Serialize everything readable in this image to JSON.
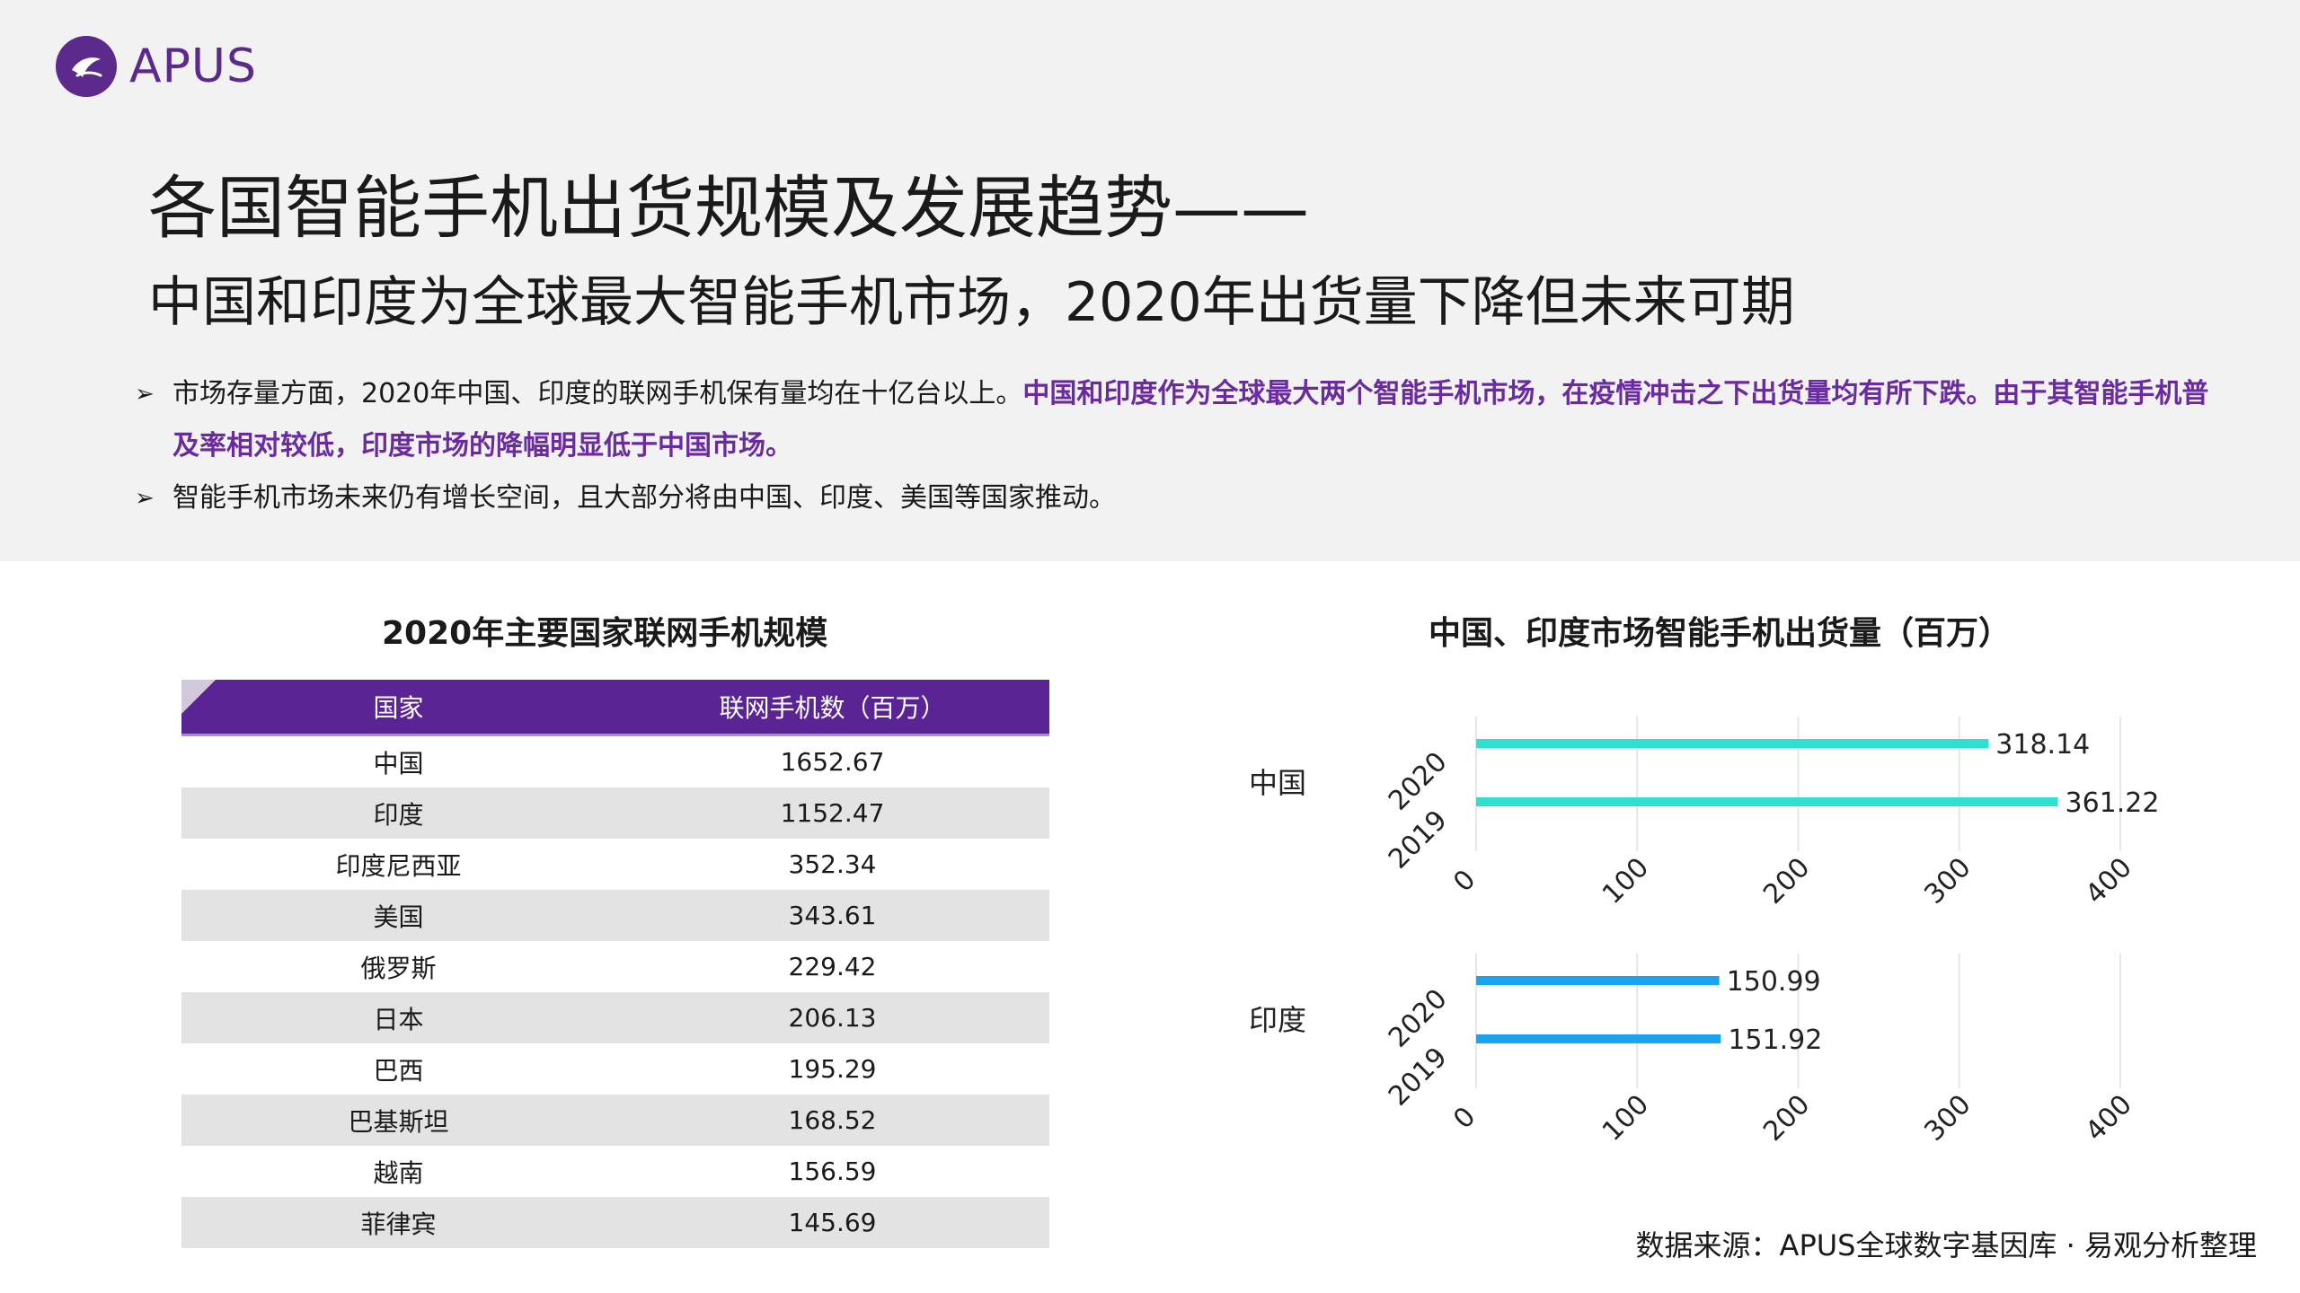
{
  "brand": {
    "name": "APUS",
    "color": "#5b2a8c"
  },
  "title": "各国智能手机出货规模及发展趋势——",
  "subtitle": "中国和印度为全球最大智能手机市场，2020年出货量下降但未来可期",
  "bullets": [
    {
      "plain": "市场存量方面，2020年中国、印度的联网手机保有量均在十亿台以上。",
      "highlight": "中国和印度作为全球最大两个智能手机市场，在疫情冲击之下出货量均有所下跌。由于其智能手机普及率相对较低，印度市场的降幅明显低于中国市场。"
    },
    {
      "plain": "智能手机市场未来仍有增长空间，且大部分将由中国、印度、美国等国家推动。",
      "highlight": ""
    }
  ],
  "table": {
    "title": "2020年主要国家联网手机规模",
    "headers": [
      "国家",
      "联网手机数（百万）"
    ],
    "rows": [
      [
        "中国",
        "1652.67"
      ],
      [
        "印度",
        "1152.47"
      ],
      [
        "印度尼西亚",
        "352.34"
      ],
      [
        "美国",
        "343.61"
      ],
      [
        "俄罗斯",
        "229.42"
      ],
      [
        "日本",
        "206.13"
      ],
      [
        "巴西",
        "195.29"
      ],
      [
        "巴基斯坦",
        "168.52"
      ],
      [
        "越南",
        "156.59"
      ],
      [
        "菲律宾",
        "145.69"
      ]
    ],
    "header_color": "#5b2494"
  },
  "chart_title": "中国、印度市场智能手机出货量（百万）",
  "chart_data": [
    {
      "type": "bar",
      "orientation": "horizontal",
      "group": "中国",
      "categories": [
        "2020",
        "2019"
      ],
      "values": [
        318.14,
        361.22
      ],
      "value_labels": [
        "318.14",
        "361.22"
      ],
      "xlim": [
        0,
        400
      ],
      "xticks": [
        "0",
        "100",
        "200",
        "300",
        "400"
      ],
      "color": "#2ee0cf",
      "grid": true
    },
    {
      "type": "bar",
      "orientation": "horizontal",
      "group": "印度",
      "categories": [
        "2020",
        "2019"
      ],
      "values": [
        150.99,
        151.92
      ],
      "value_labels": [
        "150.99",
        "151.92"
      ],
      "xlim": [
        0,
        400
      ],
      "xticks": [
        "0",
        "100",
        "200",
        "300",
        "400"
      ],
      "color": "#1aa3f0",
      "grid": true
    }
  ],
  "source": "数据来源：APUS全球数字基因库 · 易观分析整理"
}
